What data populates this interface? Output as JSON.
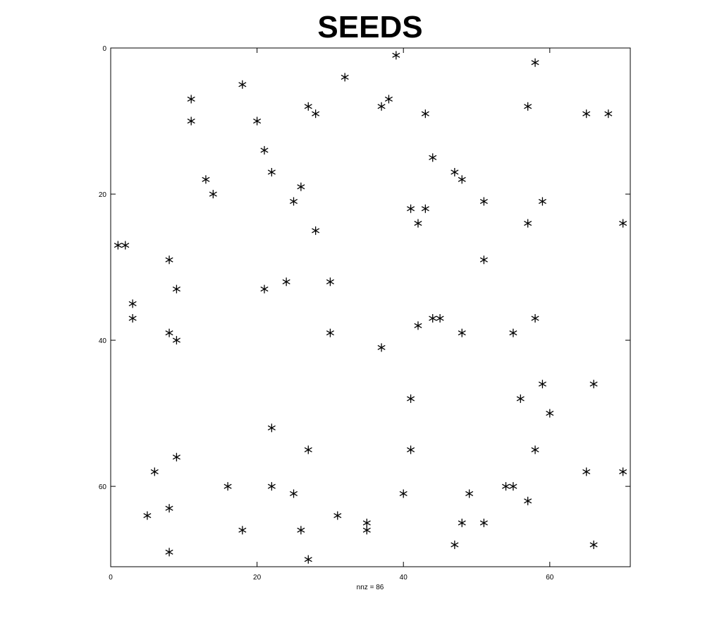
{
  "chart_data": {
    "type": "scatter",
    "title": "SEEDS",
    "xlabel": "nnz = 86",
    "ylabel": "",
    "xlim": [
      0,
      71
    ],
    "ylim": [
      0,
      71
    ],
    "y_inverted": true,
    "marker": "asterisk",
    "marker_color": "#000000",
    "grid": false,
    "xticks": [
      0,
      20,
      40,
      60
    ],
    "yticks": [
      0,
      20,
      40,
      60
    ],
    "points": [
      [
        39,
        1
      ],
      [
        58,
        2
      ],
      [
        32,
        4
      ],
      [
        18,
        5
      ],
      [
        11,
        7
      ],
      [
        38,
        7
      ],
      [
        27,
        8
      ],
      [
        37,
        8
      ],
      [
        57,
        8
      ],
      [
        28,
        9
      ],
      [
        43,
        9
      ],
      [
        65,
        9
      ],
      [
        68,
        9
      ],
      [
        11,
        10
      ],
      [
        20,
        10
      ],
      [
        21,
        14
      ],
      [
        44,
        15
      ],
      [
        22,
        17
      ],
      [
        47,
        17
      ],
      [
        13,
        18
      ],
      [
        48,
        18
      ],
      [
        26,
        19
      ],
      [
        14,
        20
      ],
      [
        25,
        21
      ],
      [
        51,
        21
      ],
      [
        59,
        21
      ],
      [
        41,
        22
      ],
      [
        43,
        22
      ],
      [
        42,
        24
      ],
      [
        57,
        24
      ],
      [
        70,
        24
      ],
      [
        28,
        25
      ],
      [
        1,
        27
      ],
      [
        2,
        27
      ],
      [
        8,
        29
      ],
      [
        51,
        29
      ],
      [
        24,
        32
      ],
      [
        30,
        32
      ],
      [
        9,
        33
      ],
      [
        21,
        33
      ],
      [
        3,
        35
      ],
      [
        3,
        37
      ],
      [
        44,
        37
      ],
      [
        45,
        37
      ],
      [
        58,
        37
      ],
      [
        42,
        38
      ],
      [
        8,
        39
      ],
      [
        30,
        39
      ],
      [
        48,
        39
      ],
      [
        55,
        39
      ],
      [
        9,
        40
      ],
      [
        37,
        41
      ],
      [
        59,
        46
      ],
      [
        66,
        46
      ],
      [
        56,
        48
      ],
      [
        41,
        48
      ],
      [
        60,
        50
      ],
      [
        22,
        52
      ],
      [
        27,
        55
      ],
      [
        41,
        55
      ],
      [
        58,
        55
      ],
      [
        9,
        56
      ],
      [
        6,
        58
      ],
      [
        65,
        58
      ],
      [
        70,
        58
      ],
      [
        16,
        60
      ],
      [
        22,
        60
      ],
      [
        54,
        60
      ],
      [
        55,
        60
      ],
      [
        25,
        61
      ],
      [
        40,
        61
      ],
      [
        49,
        61
      ],
      [
        57,
        62
      ],
      [
        8,
        63
      ],
      [
        5,
        64
      ],
      [
        31,
        64
      ],
      [
        35,
        65
      ],
      [
        48,
        65
      ],
      [
        51,
        65
      ],
      [
        18,
        66
      ],
      [
        26,
        66
      ],
      [
        35,
        66
      ],
      [
        47,
        68
      ],
      [
        66,
        68
      ],
      [
        8,
        69
      ],
      [
        27,
        70
      ]
    ]
  }
}
